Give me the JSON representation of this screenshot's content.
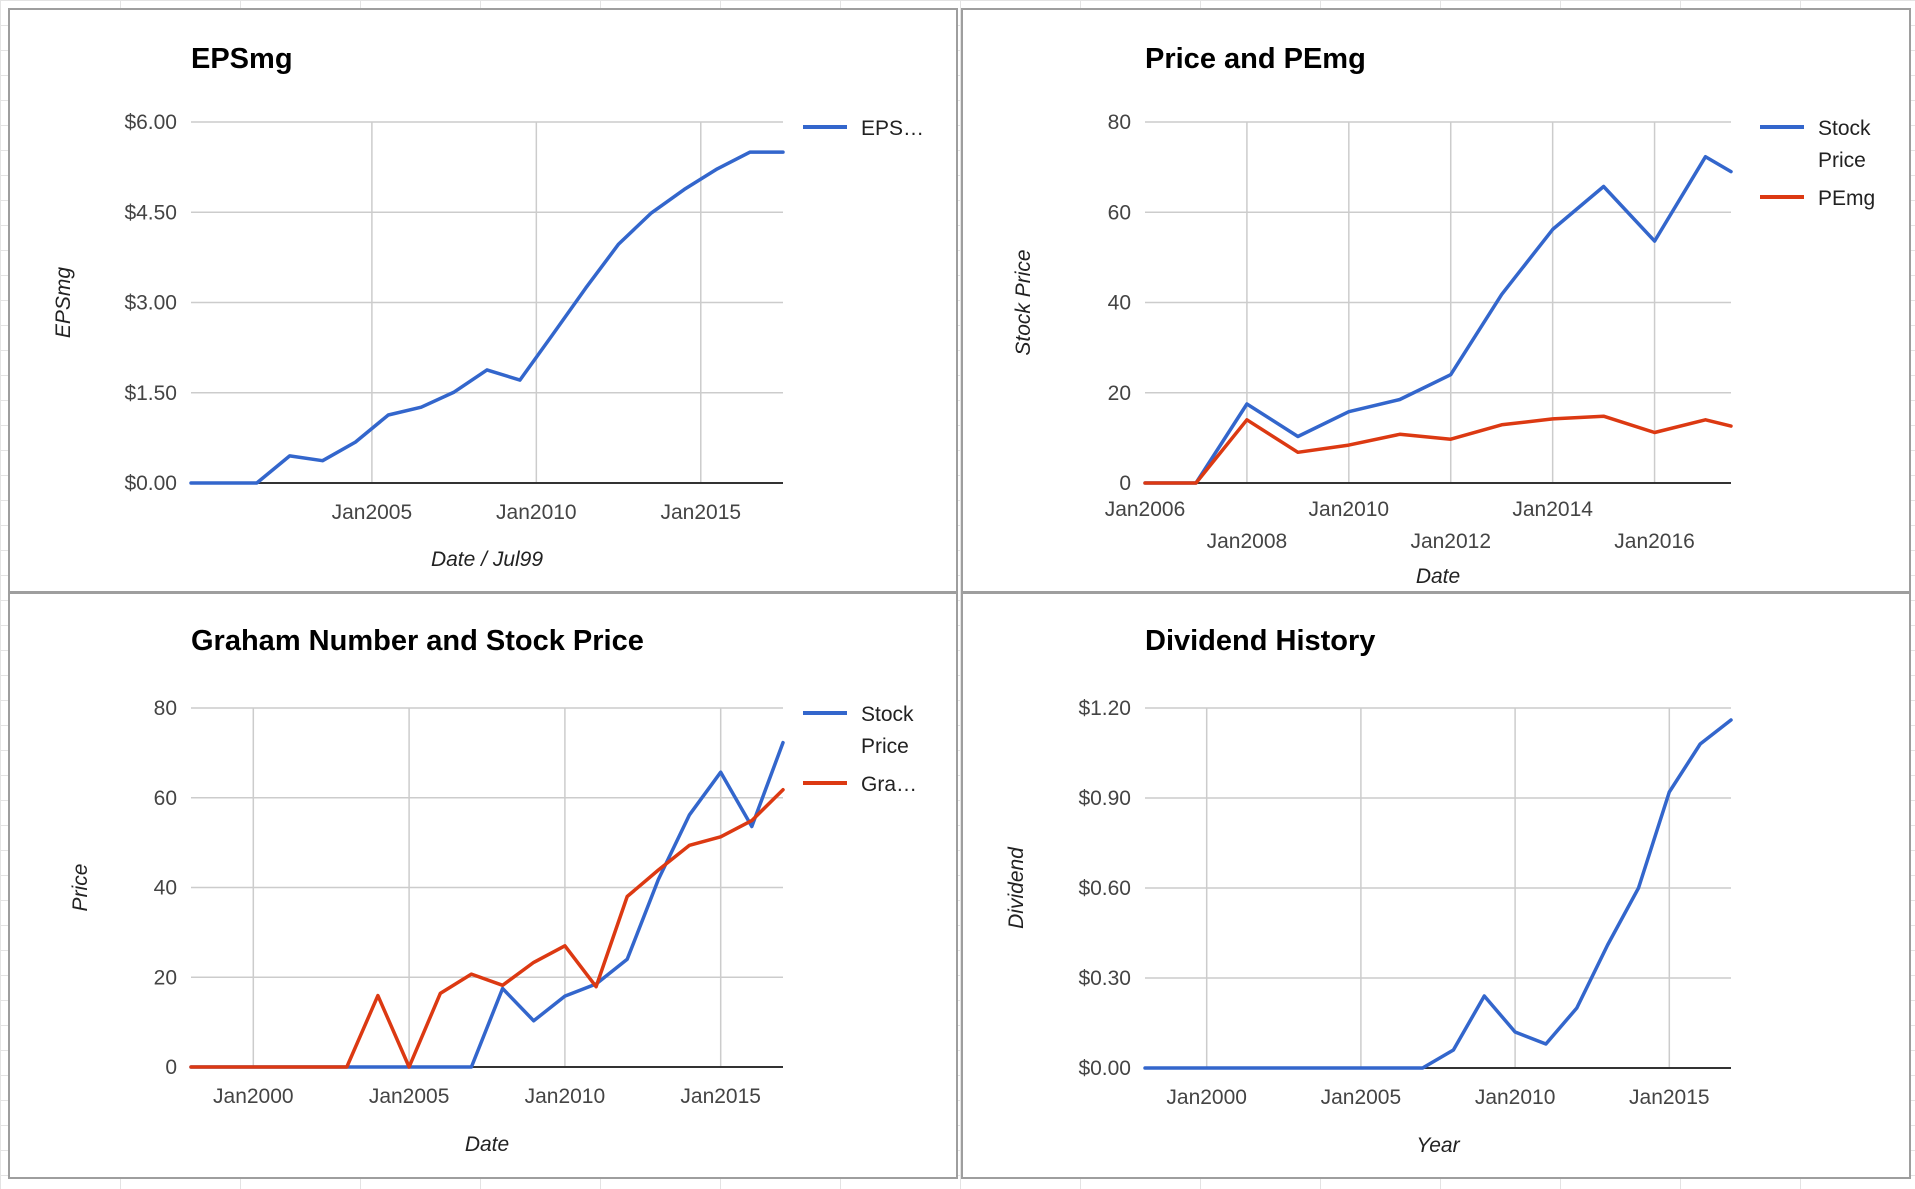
{
  "chart_data": [
    {
      "type": "line",
      "title": "EPSmg",
      "xlabel": "Date / Jul99",
      "ylabel": "EPSmg",
      "xlim": [
        1999.5,
        2017.5
      ],
      "ylim": [
        0,
        6
      ],
      "y_ticks": [
        0,
        1.5,
        3,
        4.5,
        6
      ],
      "y_tick_labels": [
        "$0.00",
        "$1.50",
        "$3.00",
        "$4.50",
        "$6.00"
      ],
      "x_ticks": [
        2005,
        2010,
        2015
      ],
      "x_tick_labels": [
        "Jan2005",
        "Jan2010",
        "Jan2015"
      ],
      "grid": true,
      "legend": "right",
      "series": [
        {
          "name": "EPS…",
          "color": "#3366cc",
          "x": [
            1999.5,
            2000.5,
            2001.5,
            2002.5,
            2003.5,
            2004.5,
            2005.5,
            2006.5,
            2007.5,
            2008.5,
            2009.5,
            2010.5,
            2011.5,
            2012.5,
            2013.5,
            2014.5,
            2015.5,
            2016.5,
            2017.5
          ],
          "y": [
            0,
            0,
            0,
            0.45,
            0.37,
            0.68,
            1.13,
            1.26,
            1.51,
            1.88,
            1.71,
            2.47,
            3.24,
            3.97,
            4.49,
            4.88,
            5.22,
            5.5,
            5.5
          ]
        }
      ]
    },
    {
      "type": "line",
      "title": "Price and PEmg",
      "xlabel": "Date",
      "ylabel": "Stock Price",
      "xlim": [
        2006,
        2017.5
      ],
      "ylim": [
        0,
        80
      ],
      "y_ticks": [
        0,
        20,
        40,
        60,
        80
      ],
      "y_tick_labels": [
        "0",
        "20",
        "40",
        "60",
        "80"
      ],
      "x_ticks": [
        2006,
        2008,
        2010,
        2012,
        2014,
        2016
      ],
      "x_tick_labels": [
        "Jan2006",
        "Jan2008",
        "Jan2010",
        "Jan2012",
        "Jan2014",
        "Jan2016"
      ],
      "grid": true,
      "legend": "right",
      "series": [
        {
          "name": "Stock Price",
          "color": "#3366cc",
          "x": [
            2006,
            2007,
            2008,
            2009,
            2010,
            2011,
            2012,
            2013,
            2014,
            2015,
            2016,
            2017,
            2017.5
          ],
          "y": [
            0,
            0,
            17.5,
            10.3,
            15.8,
            18.5,
            24,
            41.8,
            56.2,
            65.7,
            53.6,
            72.3,
            69
          ]
        },
        {
          "name": "PEmg",
          "color": "#dc3912",
          "x": [
            2006,
            2007,
            2008,
            2009,
            2010,
            2011,
            2012,
            2013,
            2014,
            2015,
            2016,
            2017,
            2017.5
          ],
          "y": [
            0,
            0,
            14,
            6.8,
            8.4,
            10.8,
            9.7,
            12.9,
            14.2,
            14.8,
            11.2,
            14,
            12.6
          ]
        }
      ]
    },
    {
      "type": "line",
      "title": "Graham Number and Stock Price",
      "xlabel": "Date",
      "ylabel": "Price",
      "xlim": [
        1998,
        2017
      ],
      "ylim": [
        0,
        80
      ],
      "y_ticks": [
        0,
        20,
        40,
        60,
        80
      ],
      "y_tick_labels": [
        "0",
        "20",
        "40",
        "60",
        "80"
      ],
      "x_ticks": [
        2000,
        2005,
        2010,
        2015
      ],
      "x_tick_labels": [
        "Jan2000",
        "Jan2005",
        "Jan2010",
        "Jan2015"
      ],
      "grid": true,
      "legend": "right",
      "series": [
        {
          "name": "Stock Price",
          "color": "#3366cc",
          "x": [
            1998,
            1999,
            2000,
            2001,
            2002,
            2003,
            2004,
            2005,
            2006,
            2007,
            2008,
            2009,
            2010,
            2011,
            2012,
            2013,
            2014,
            2015,
            2016,
            2017
          ],
          "y": [
            0,
            0,
            0,
            0,
            0,
            0,
            0,
            0,
            0,
            0,
            17.5,
            10.3,
            15.8,
            18.5,
            24,
            41.8,
            56.2,
            65.7,
            53.6,
            72.3
          ]
        },
        {
          "name": "Gra…",
          "color": "#dc3912",
          "x": [
            1998,
            1999,
            2000,
            2001,
            2002,
            2003,
            2004,
            2005,
            2006,
            2007,
            2008,
            2009,
            2010,
            2011,
            2012,
            2013,
            2014,
            2015,
            2016,
            2017
          ],
          "y": [
            0,
            0,
            0,
            0,
            0,
            0,
            15.9,
            0,
            16.4,
            20.7,
            18.2,
            23.3,
            27,
            17.9,
            38,
            43.9,
            49.4,
            51.3,
            54.9,
            61.8
          ]
        }
      ]
    },
    {
      "type": "line",
      "title": "Dividend History",
      "xlabel": "Year",
      "ylabel": "Dividend",
      "xlim": [
        1998,
        2017
      ],
      "ylim": [
        0,
        1.2
      ],
      "y_ticks": [
        0,
        0.3,
        0.6,
        0.9,
        1.2
      ],
      "y_tick_labels": [
        "$0.00",
        "$0.30",
        "$0.60",
        "$0.90",
        "$1.20"
      ],
      "x_ticks": [
        2000,
        2005,
        2010,
        2015
      ],
      "x_tick_labels": [
        "Jan2000",
        "Jan2005",
        "Jan2010",
        "Jan2015"
      ],
      "grid": true,
      "legend": "none",
      "series": [
        {
          "color": "#3366cc",
          "x": [
            1998,
            1999,
            2000,
            2001,
            2002,
            2003,
            2004,
            2005,
            2006,
            2007,
            2008,
            2009,
            2010,
            2011,
            2012,
            2013,
            2014,
            2015,
            2016,
            2017
          ],
          "y": [
            0,
            0,
            0,
            0,
            0,
            0,
            0,
            0,
            0,
            0,
            0.06,
            0.24,
            0.12,
            0.08,
            0.2,
            0.41,
            0.6,
            0.92,
            1.08,
            1.16
          ]
        }
      ]
    }
  ]
}
